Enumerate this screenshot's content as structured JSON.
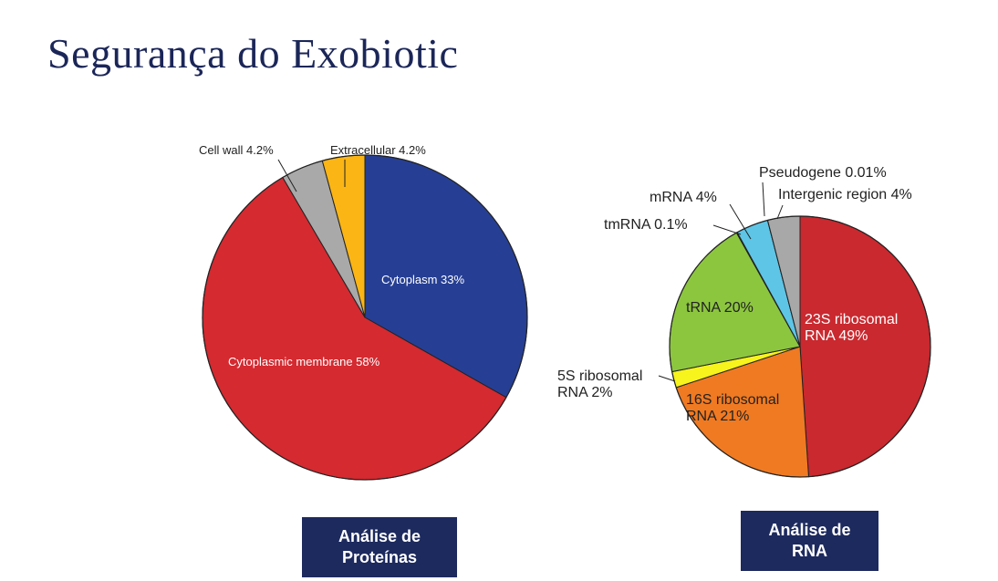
{
  "slide_title": "Segurança do Exobiotic",
  "chart_data": [
    {
      "type": "pie",
      "caption": "Análise de Proteínas",
      "categories": [
        "Cytoplasm",
        "Cytoplasmic membrane",
        "Cell wall",
        "Extracellular"
      ],
      "values": [
        33,
        58,
        4.2,
        4.2
      ],
      "value_labels": [
        "33%",
        "58%",
        "4.2%",
        "4.2%"
      ],
      "colors": [
        "#263f94",
        "#d42a30",
        "#a9a9a9",
        "#fbb514"
      ]
    },
    {
      "type": "pie",
      "caption": "Análise de RNA",
      "categories": [
        "23S ribosomal RNA",
        "16S ribosomal RNA",
        "5S ribosomal RNA",
        "tRNA",
        "tmRNA",
        "mRNA",
        "Pseudogene",
        "Intergenic region"
      ],
      "values": [
        49,
        21,
        2,
        20,
        0.1,
        4,
        0.01,
        4
      ],
      "value_labels": [
        "49%",
        "21%",
        "2%",
        "20%",
        "0.1%",
        "4%",
        "0.01%",
        "4%"
      ],
      "colors": [
        "#c9292f",
        "#f07a22",
        "#f7f31c",
        "#8cc63f",
        "#1a1a1a",
        "#5ec5e6",
        "#333333",
        "#a8a8a8"
      ]
    }
  ]
}
